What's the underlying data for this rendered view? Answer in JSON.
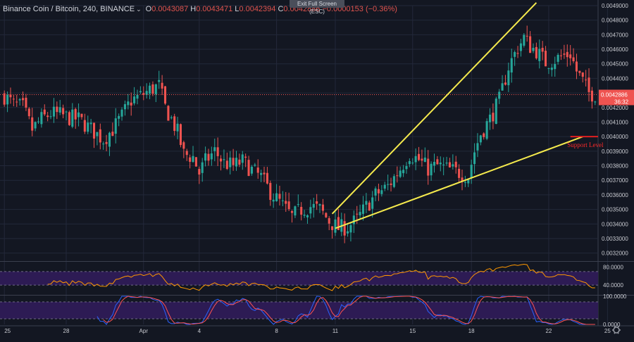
{
  "header": {
    "symbol": "Binance Coin / Bitcoin, 240, BINANCE",
    "o_label": "O",
    "o_value": "0.0043087",
    "h_label": "H",
    "h_value": "0.0043471",
    "l_label": "L",
    "l_value": "0.0042394",
    "c_label": "C",
    "c_value": "0.0042886",
    "change": "−0.0000153 (−0.36%)",
    "menu_icon": "chevron-down-icon"
  },
  "exit_fullscreen": "Exit Full Screen (ESC)",
  "colors": {
    "background": "#131722",
    "grid": "#23283a",
    "up": "#26a69a",
    "down": "#ef5350",
    "trendline": "#f5ea4d",
    "support": "#e02020",
    "rsi": "#ff9800",
    "stoch_k": "#2962ff",
    "stoch_d": "#ff5252",
    "band": "#2d1b54",
    "axis_text": "#c8cad0"
  },
  "chart_data": [
    {
      "type": "candlestick",
      "title": "Binance Coin / Bitcoin, 240, BINANCE",
      "x_ticks": [
        {
          "i": 0,
          "label": "25"
        },
        {
          "i": 20,
          "label": "28"
        },
        {
          "i": 45,
          "label": "Apr"
        },
        {
          "i": 63,
          "label": "4"
        },
        {
          "i": 88,
          "label": "8"
        },
        {
          "i": 107,
          "label": "11"
        },
        {
          "i": 132,
          "label": "15"
        },
        {
          "i": 151,
          "label": "18"
        },
        {
          "i": 176,
          "label": "22"
        },
        {
          "i": 195,
          "label": "25"
        }
      ],
      "ylim": [
        0.00315,
        0.0049
      ],
      "y_ticks": [
        "0.0049000",
        "0.0048000",
        "0.0047000",
        "0.0046000",
        "0.0045000",
        "0.0044000",
        "0.0043000",
        "0.0042000",
        "0.0041000",
        "0.0040000",
        "0.0039000",
        "0.0038000",
        "0.0037000",
        "0.0036000",
        "0.0035000",
        "0.0034000",
        "0.0033000",
        "0.0032000"
      ],
      "last_price": "0.0042886",
      "countdown": "36:32",
      "support_label": "Support Level",
      "support_level": 0.004,
      "trendlines": [
        {
          "from": [
            106,
            0.00347
          ],
          "to": [
            172,
            0.00492
          ]
        },
        {
          "from": [
            107,
            0.00337
          ],
          "to": [
            187,
            0.004
          ]
        }
      ],
      "close_anchors": [
        [
          0,
          0.00428
        ],
        [
          3,
          0.00422
        ],
        [
          6,
          0.0042
        ],
        [
          9,
          0.00405
        ],
        [
          12,
          0.00412
        ],
        [
          15,
          0.00416
        ],
        [
          18,
          0.00415
        ],
        [
          21,
          0.00413
        ],
        [
          24,
          0.00412
        ],
        [
          28,
          0.00405
        ],
        [
          32,
          0.00398
        ],
        [
          35,
          0.00405
        ],
        [
          38,
          0.00414
        ],
        [
          41,
          0.00425
        ],
        [
          44,
          0.00428
        ],
        [
          47,
          0.00432
        ],
        [
          50,
          0.00435
        ],
        [
          52,
          0.0042
        ],
        [
          54,
          0.00412
        ],
        [
          56,
          0.00403
        ],
        [
          58,
          0.00388
        ],
        [
          61,
          0.00386
        ],
        [
          63,
          0.00375
        ],
        [
          65,
          0.00383
        ],
        [
          68,
          0.0039
        ],
        [
          71,
          0.00382
        ],
        [
          74,
          0.0038
        ],
        [
          77,
          0.00383
        ],
        [
          80,
          0.00377
        ],
        [
          83,
          0.00372
        ],
        [
          86,
          0.00362
        ],
        [
          89,
          0.00355
        ],
        [
          93,
          0.00345
        ],
        [
          96,
          0.0035
        ],
        [
          99,
          0.00352
        ],
        [
          102,
          0.0035
        ],
        [
          105,
          0.00342
        ],
        [
          108,
          0.00337
        ],
        [
          111,
          0.00338
        ],
        [
          114,
          0.00343
        ],
        [
          117,
          0.00352
        ],
        [
          120,
          0.0036
        ],
        [
          124,
          0.00366
        ],
        [
          128,
          0.00378
        ],
        [
          131,
          0.00388
        ],
        [
          134,
          0.00384
        ],
        [
          137,
          0.00378
        ],
        [
          140,
          0.0038
        ],
        [
          143,
          0.00378
        ],
        [
          146,
          0.00376
        ],
        [
          150,
          0.00373
        ],
        [
          152,
          0.0039
        ],
        [
          154,
          0.00402
        ],
        [
          157,
          0.00412
        ],
        [
          160,
          0.00425
        ],
        [
          163,
          0.00448
        ],
        [
          166,
          0.00461
        ],
        [
          168,
          0.00468
        ],
        [
          170,
          0.00462
        ],
        [
          172,
          0.00459
        ],
        [
          175,
          0.00451
        ],
        [
          177,
          0.00452
        ],
        [
          180,
          0.00455
        ],
        [
          183,
          0.00457
        ],
        [
          185,
          0.00445
        ],
        [
          187,
          0.00438
        ],
        [
          189,
          0.0043
        ],
        [
          191,
          0.00429
        ]
      ],
      "n_bars": 192,
      "seed": 7
    },
    {
      "type": "line",
      "series": [
        {
          "values": "rsi"
        }
      ],
      "ylim": [
        20,
        90
      ],
      "y_ticks": [
        "80.0000",
        "40.0000"
      ],
      "band": [
        40,
        70
      ]
    },
    {
      "type": "line",
      "series": [
        {
          "values": "stoch_k"
        },
        {
          "values": "stoch_d"
        }
      ],
      "ylim": [
        0,
        100
      ],
      "y_ticks": [
        "100.0000",
        "0.0000"
      ],
      "band": [
        20,
        80
      ]
    }
  ],
  "toolbar": {
    "settings_icon": "gear-icon"
  }
}
